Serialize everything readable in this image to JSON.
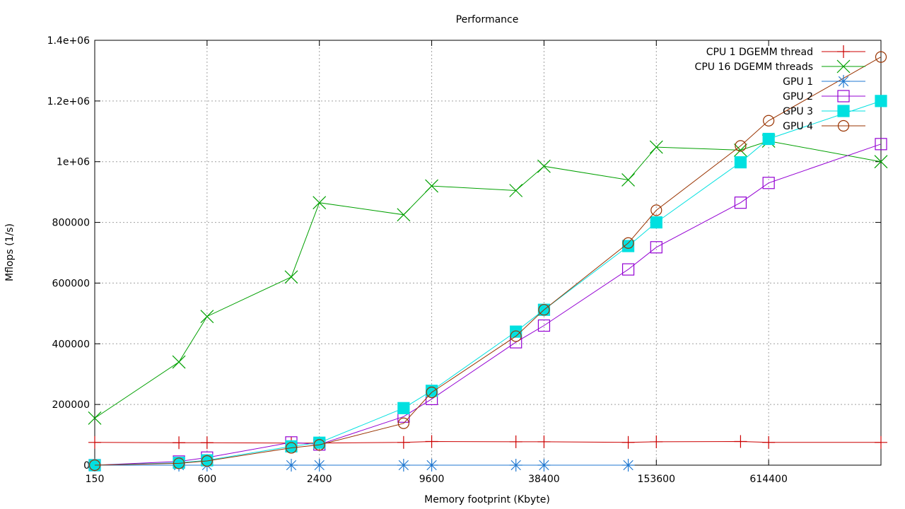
{
  "chart_data": {
    "type": "line",
    "title": "Performance",
    "xlabel": "Memory footprint (Kbyte)",
    "ylabel": "Mflops (1/s)",
    "x_scale": "log",
    "xlim": [
      150,
      2457600
    ],
    "ylim": [
      0,
      1400000
    ],
    "x_ticks": [
      150,
      600,
      2400,
      9600,
      38400,
      153600,
      614400
    ],
    "y_ticks": [
      0,
      200000,
      400000,
      600000,
      800000,
      1000000,
      1200000,
      1400000
    ],
    "y_tick_labels": [
      "0",
      "200000",
      "400000",
      "600000",
      "800000",
      "1e+06",
      "1.2e+06",
      "1.4e+06"
    ],
    "x": [
      150,
      600,
      2400,
      9600,
      38400,
      153600,
      614400,
      2457600
    ],
    "grid": true,
    "legend_position": "top-right",
    "series": [
      {
        "name": "CPU 1 DGEMM thread",
        "color": "#cc0000",
        "marker": "plus",
        "points": [
          [
            150,
            75000
          ],
          [
            424,
            74000
          ],
          [
            600,
            74000
          ],
          [
            1697,
            73000
          ],
          [
            2400,
            73000
          ],
          [
            6788,
            75000
          ],
          [
            9600,
            78000
          ],
          [
            27150,
            77000
          ],
          [
            38400,
            77000
          ],
          [
            108600,
            75000
          ],
          [
            153600,
            77000
          ],
          [
            434400,
            78000
          ],
          [
            614400,
            75000
          ],
          [
            2457600,
            75000
          ]
        ]
      },
      {
        "name": "CPU 16 DGEMM threads",
        "color": "#00a000",
        "marker": "x",
        "points": [
          [
            150,
            155000
          ],
          [
            424,
            340000
          ],
          [
            600,
            490000
          ],
          [
            1697,
            620000
          ],
          [
            2400,
            865000
          ],
          [
            6788,
            825000
          ],
          [
            9600,
            920000
          ],
          [
            27150,
            905000
          ],
          [
            38400,
            985000
          ],
          [
            108600,
            940000
          ],
          [
            153600,
            1048000
          ],
          [
            434400,
            1038000
          ],
          [
            614400,
            1068000
          ],
          [
            2457600,
            1000000
          ]
        ]
      },
      {
        "name": "GPU 1",
        "color": "#1f77d0",
        "marker": "star",
        "points": [
          [
            150,
            0
          ],
          [
            424,
            0
          ],
          [
            600,
            0
          ],
          [
            1697,
            0
          ],
          [
            2400,
            0
          ],
          [
            6788,
            0
          ],
          [
            9600,
            0
          ],
          [
            27150,
            0
          ],
          [
            38400,
            0
          ],
          [
            108600,
            0
          ]
        ]
      },
      {
        "name": "GPU 2",
        "color": "#9400d3",
        "marker": "open-square",
        "points": [
          [
            150,
            0
          ],
          [
            424,
            12000
          ],
          [
            600,
            25000
          ],
          [
            1697,
            75000
          ],
          [
            2400,
            68000
          ],
          [
            6788,
            160000
          ],
          [
            9600,
            218000
          ],
          [
            27150,
            405000
          ],
          [
            38400,
            460000
          ],
          [
            108600,
            645000
          ],
          [
            153600,
            718000
          ],
          [
            434400,
            865000
          ],
          [
            614400,
            930000
          ],
          [
            2457600,
            1058000
          ]
        ]
      },
      {
        "name": "GPU 3",
        "color": "#00e0e0",
        "marker": "filled-square",
        "points": [
          [
            150,
            0
          ],
          [
            424,
            8000
          ],
          [
            600,
            16000
          ],
          [
            1697,
            62000
          ],
          [
            2400,
            74000
          ],
          [
            6788,
            188000
          ],
          [
            9600,
            245000
          ],
          [
            27150,
            440000
          ],
          [
            38400,
            512000
          ],
          [
            108600,
            722000
          ],
          [
            153600,
            800000
          ],
          [
            434400,
            998000
          ],
          [
            614400,
            1075000
          ],
          [
            2457600,
            1200000
          ]
        ]
      },
      {
        "name": "GPU 4",
        "color": "#993300",
        "marker": "open-circle",
        "points": [
          [
            150,
            0
          ],
          [
            424,
            6000
          ],
          [
            600,
            14000
          ],
          [
            1697,
            57000
          ],
          [
            2400,
            67000
          ],
          [
            6788,
            138000
          ],
          [
            9600,
            240000
          ],
          [
            27150,
            425000
          ],
          [
            38400,
            512000
          ],
          [
            108600,
            732000
          ],
          [
            153600,
            840000
          ],
          [
            434400,
            1052000
          ],
          [
            614400,
            1135000
          ],
          [
            2457600,
            1345000
          ]
        ]
      }
    ]
  }
}
